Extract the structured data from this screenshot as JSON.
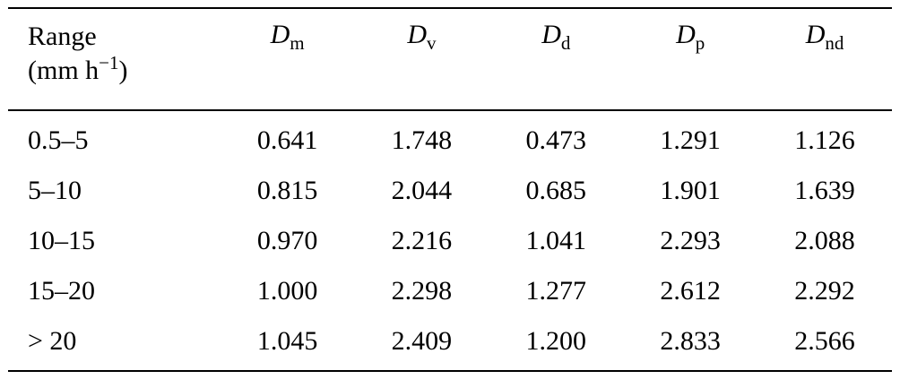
{
  "table": {
    "range_header": "Range",
    "unit": {
      "prefix": "(mm h",
      "sup": "−1",
      "suffix": ")"
    },
    "headers": [
      {
        "main": "D",
        "sub": "m"
      },
      {
        "main": "D",
        "sub": "v"
      },
      {
        "main": "D",
        "sub": "d"
      },
      {
        "main": "D",
        "sub": "p"
      },
      {
        "main": "D",
        "sub": "nd"
      }
    ],
    "rows": [
      {
        "range": "0.5–5",
        "values": [
          "0.641",
          "1.748",
          "0.473",
          "1.291",
          "1.126"
        ]
      },
      {
        "range": "5–10",
        "values": [
          "0.815",
          "2.044",
          "0.685",
          "1.901",
          "1.639"
        ]
      },
      {
        "range": "10–15",
        "values": [
          "0.970",
          "2.216",
          "1.041",
          "2.293",
          "2.088"
        ]
      },
      {
        "range": "15–20",
        "values": [
          "1.000",
          "2.298",
          "1.277",
          "2.612",
          "2.292"
        ]
      },
      {
        "range": "> 20",
        "values": [
          "1.045",
          "2.409",
          "1.200",
          "2.833",
          "2.566"
        ]
      }
    ],
    "colors": {
      "text": "#000000",
      "background": "#ffffff",
      "rule": "#000000"
    }
  },
  "chart_data": {
    "type": "table",
    "columns": [
      "Range (mm h−1)",
      "Dm",
      "Dv",
      "Dd",
      "Dp",
      "Dnd"
    ],
    "rows": [
      [
        "0.5–5",
        0.641,
        1.748,
        0.473,
        1.291,
        1.126
      ],
      [
        "5–10",
        0.815,
        2.044,
        0.685,
        1.901,
        1.639
      ],
      [
        "10–15",
        0.97,
        2.216,
        1.041,
        2.293,
        2.088
      ],
      [
        "15–20",
        1.0,
        2.298,
        1.277,
        2.612,
        2.292
      ],
      [
        "> 20",
        1.045,
        2.409,
        1.2,
        2.833,
        2.566
      ]
    ]
  }
}
